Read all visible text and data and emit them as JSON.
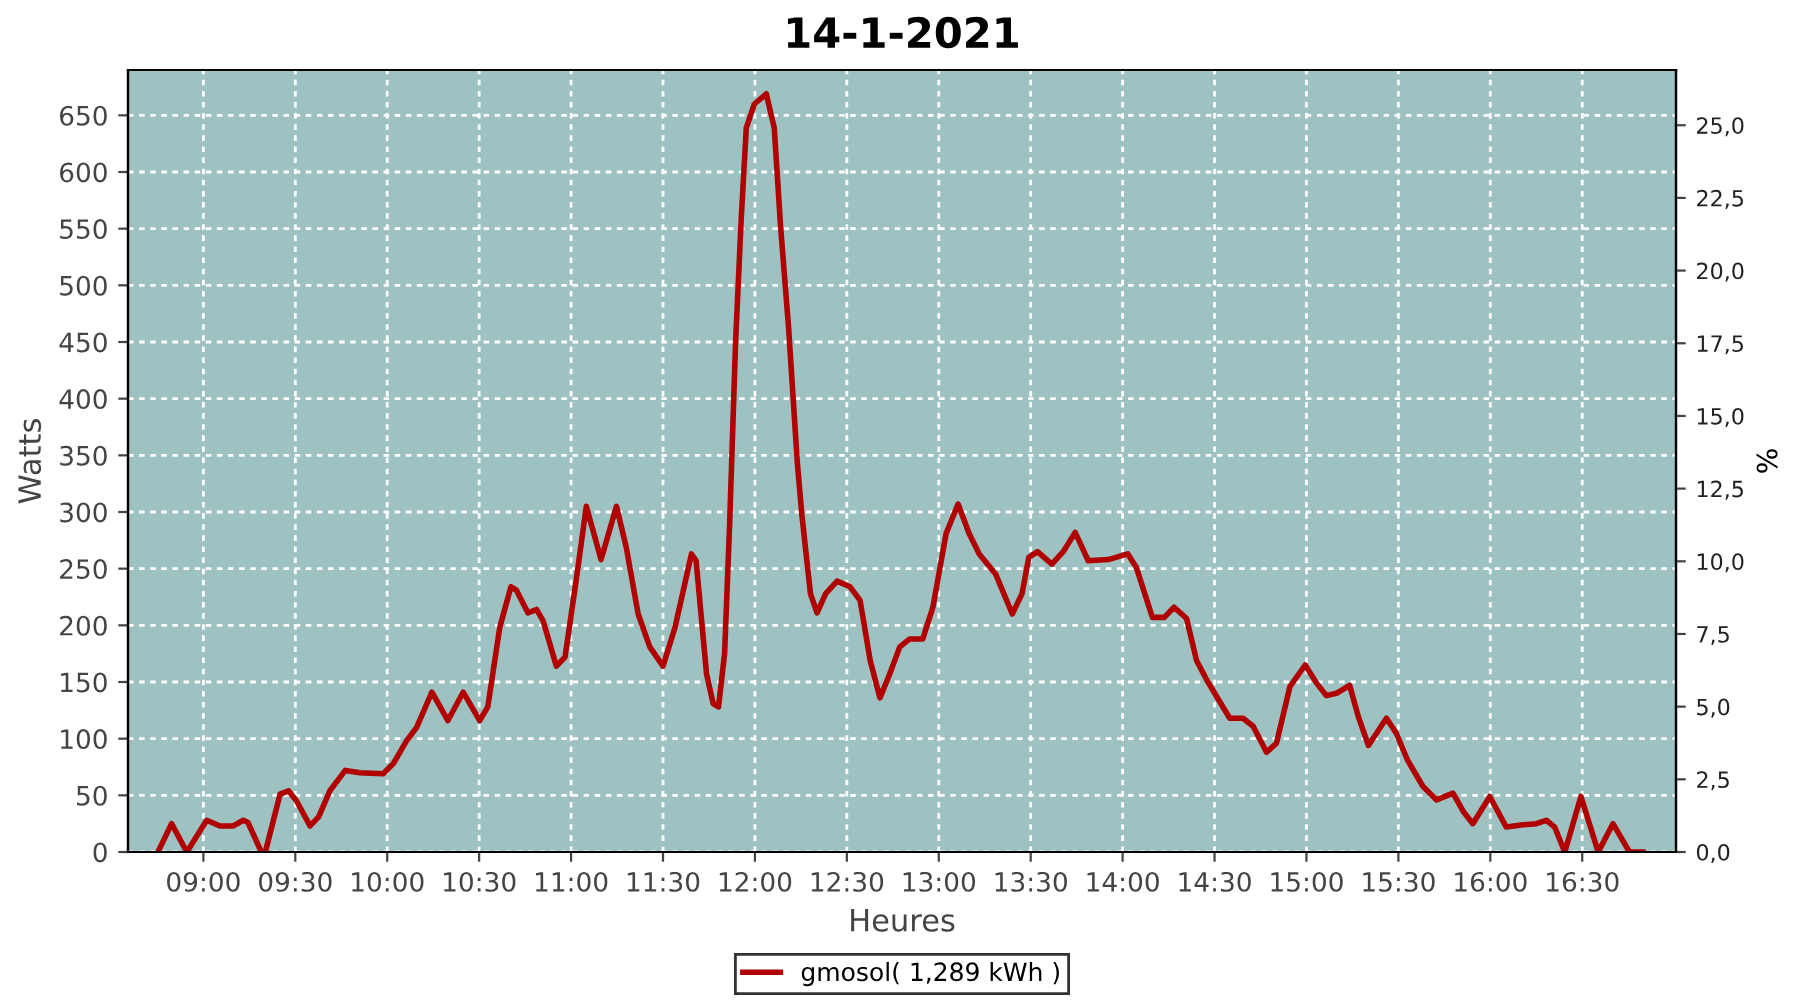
{
  "chart_data": {
    "type": "line",
    "title": "14-1-2021",
    "xlabel": "Heures",
    "ylabel": "Watts",
    "y2label": "%",
    "xlim": [
      8.59,
      17.01
    ],
    "xticks": [
      {
        "value": 9.0,
        "label": "09:00"
      },
      {
        "value": 9.5,
        "label": "09:30"
      },
      {
        "value": 10.0,
        "label": "10:00"
      },
      {
        "value": 10.5,
        "label": "10:30"
      },
      {
        "value": 11.0,
        "label": "11:00"
      },
      {
        "value": 11.5,
        "label": "11:30"
      },
      {
        "value": 12.0,
        "label": "12:00"
      },
      {
        "value": 12.5,
        "label": "12:30"
      },
      {
        "value": 13.0,
        "label": "13:00"
      },
      {
        "value": 13.5,
        "label": "13:30"
      },
      {
        "value": 14.0,
        "label": "14:00"
      },
      {
        "value": 14.5,
        "label": "14:30"
      },
      {
        "value": 15.0,
        "label": "15:00"
      },
      {
        "value": 15.5,
        "label": "15:30"
      },
      {
        "value": 16.0,
        "label": "16:00"
      },
      {
        "value": 16.5,
        "label": "16:30"
      }
    ],
    "ylim": [
      0,
      690
    ],
    "yticks": [
      0,
      50,
      100,
      150,
      200,
      250,
      300,
      350,
      400,
      450,
      500,
      550,
      600,
      650
    ],
    "y2lim": [
      0,
      26.9
    ],
    "y2ticks": [
      {
        "value": 0,
        "label": "0,0"
      },
      {
        "value": 2.5,
        "label": "2,5"
      },
      {
        "value": 5,
        "label": "5,0"
      },
      {
        "value": 7.5,
        "label": "7,5"
      },
      {
        "value": 10,
        "label": "10,0"
      },
      {
        "value": 12.5,
        "label": "12,5"
      },
      {
        "value": 15,
        "label": "15,0"
      },
      {
        "value": 17.5,
        "label": "17,5"
      },
      {
        "value": 20,
        "label": "20,0"
      },
      {
        "value": 22.5,
        "label": "22,5"
      },
      {
        "value": 25,
        "label": "25,0"
      }
    ],
    "grid": true,
    "legend": "bottom",
    "marker": "none",
    "line_style": "solid",
    "series": [
      {
        "name": "gmosol( 1,289 kWh )",
        "color": "#b00000",
        "x": [
          8.753,
          8.827,
          8.91,
          9.018,
          9.09,
          9.163,
          9.217,
          9.243,
          9.315,
          9.337,
          9.417,
          9.463,
          9.507,
          9.58,
          9.627,
          9.688,
          9.772,
          9.85,
          9.978,
          10.033,
          10.105,
          10.16,
          10.243,
          10.33,
          10.413,
          10.503,
          10.547,
          10.612,
          10.673,
          10.703,
          10.765,
          10.812,
          10.848,
          10.92,
          10.967,
          11.028,
          11.083,
          11.163,
          11.247,
          11.3,
          11.365,
          11.428,
          11.5,
          11.565,
          11.655,
          11.68,
          11.737,
          11.773,
          11.802,
          11.835,
          11.863,
          11.895,
          11.925,
          11.953,
          11.997,
          12.062,
          12.105,
          12.14,
          12.183,
          12.23,
          12.255,
          12.302,
          12.338,
          12.385,
          12.447,
          12.518,
          12.572,
          12.627,
          12.68,
          12.733,
          12.788,
          12.842,
          12.913,
          12.968,
          13.04,
          13.105,
          13.165,
          13.22,
          13.31,
          13.4,
          13.453,
          13.49,
          13.537,
          13.615,
          13.677,
          13.742,
          13.813,
          13.922,
          14.028,
          14.075,
          14.162,
          14.227,
          14.28,
          14.348,
          14.402,
          14.457,
          14.512,
          14.583,
          14.655,
          14.71,
          14.783,
          14.837,
          14.91,
          14.993,
          15.055,
          15.108,
          15.163,
          15.235,
          15.283,
          15.337,
          15.435,
          15.488,
          15.55,
          15.633,
          15.707,
          15.797,
          15.852,
          15.905,
          15.997,
          16.087,
          16.178,
          16.25,
          16.305,
          16.35,
          16.405,
          16.493,
          16.587,
          16.667,
          16.757,
          16.83
        ],
        "values": [
          0,
          25,
          0,
          28,
          23,
          23,
          28,
          26,
          0,
          0,
          51,
          54,
          45,
          23,
          31,
          54,
          72,
          70,
          69,
          78,
          98,
          110,
          141,
          116,
          141,
          116,
          128,
          198,
          234,
          231,
          211,
          214,
          204,
          164,
          172,
          240,
          305,
          258,
          305,
          269,
          210,
          181,
          164,
          198,
          263,
          257,
          157,
          131,
          128,
          175,
          292,
          451,
          557,
          639,
          660,
          669,
          639,
          551,
          463,
          345,
          298,
          228,
          211,
          228,
          239,
          234,
          222,
          169,
          136,
          157,
          181,
          188,
          188,
          216,
          281,
          307,
          281,
          263,
          245,
          210,
          228,
          260,
          265,
          254,
          265,
          282,
          257,
          258,
          263,
          251,
          207,
          207,
          216,
          206,
          169,
          152,
          137,
          118,
          118,
          111,
          88,
          96,
          146,
          165,
          149,
          138,
          140,
          147,
          119,
          94,
          118,
          105,
          81,
          58,
          46,
          52,
          36,
          25,
          49,
          22,
          24,
          25,
          28,
          22,
          0,
          49,
          0,
          25,
          0,
          0
        ]
      }
    ]
  }
}
